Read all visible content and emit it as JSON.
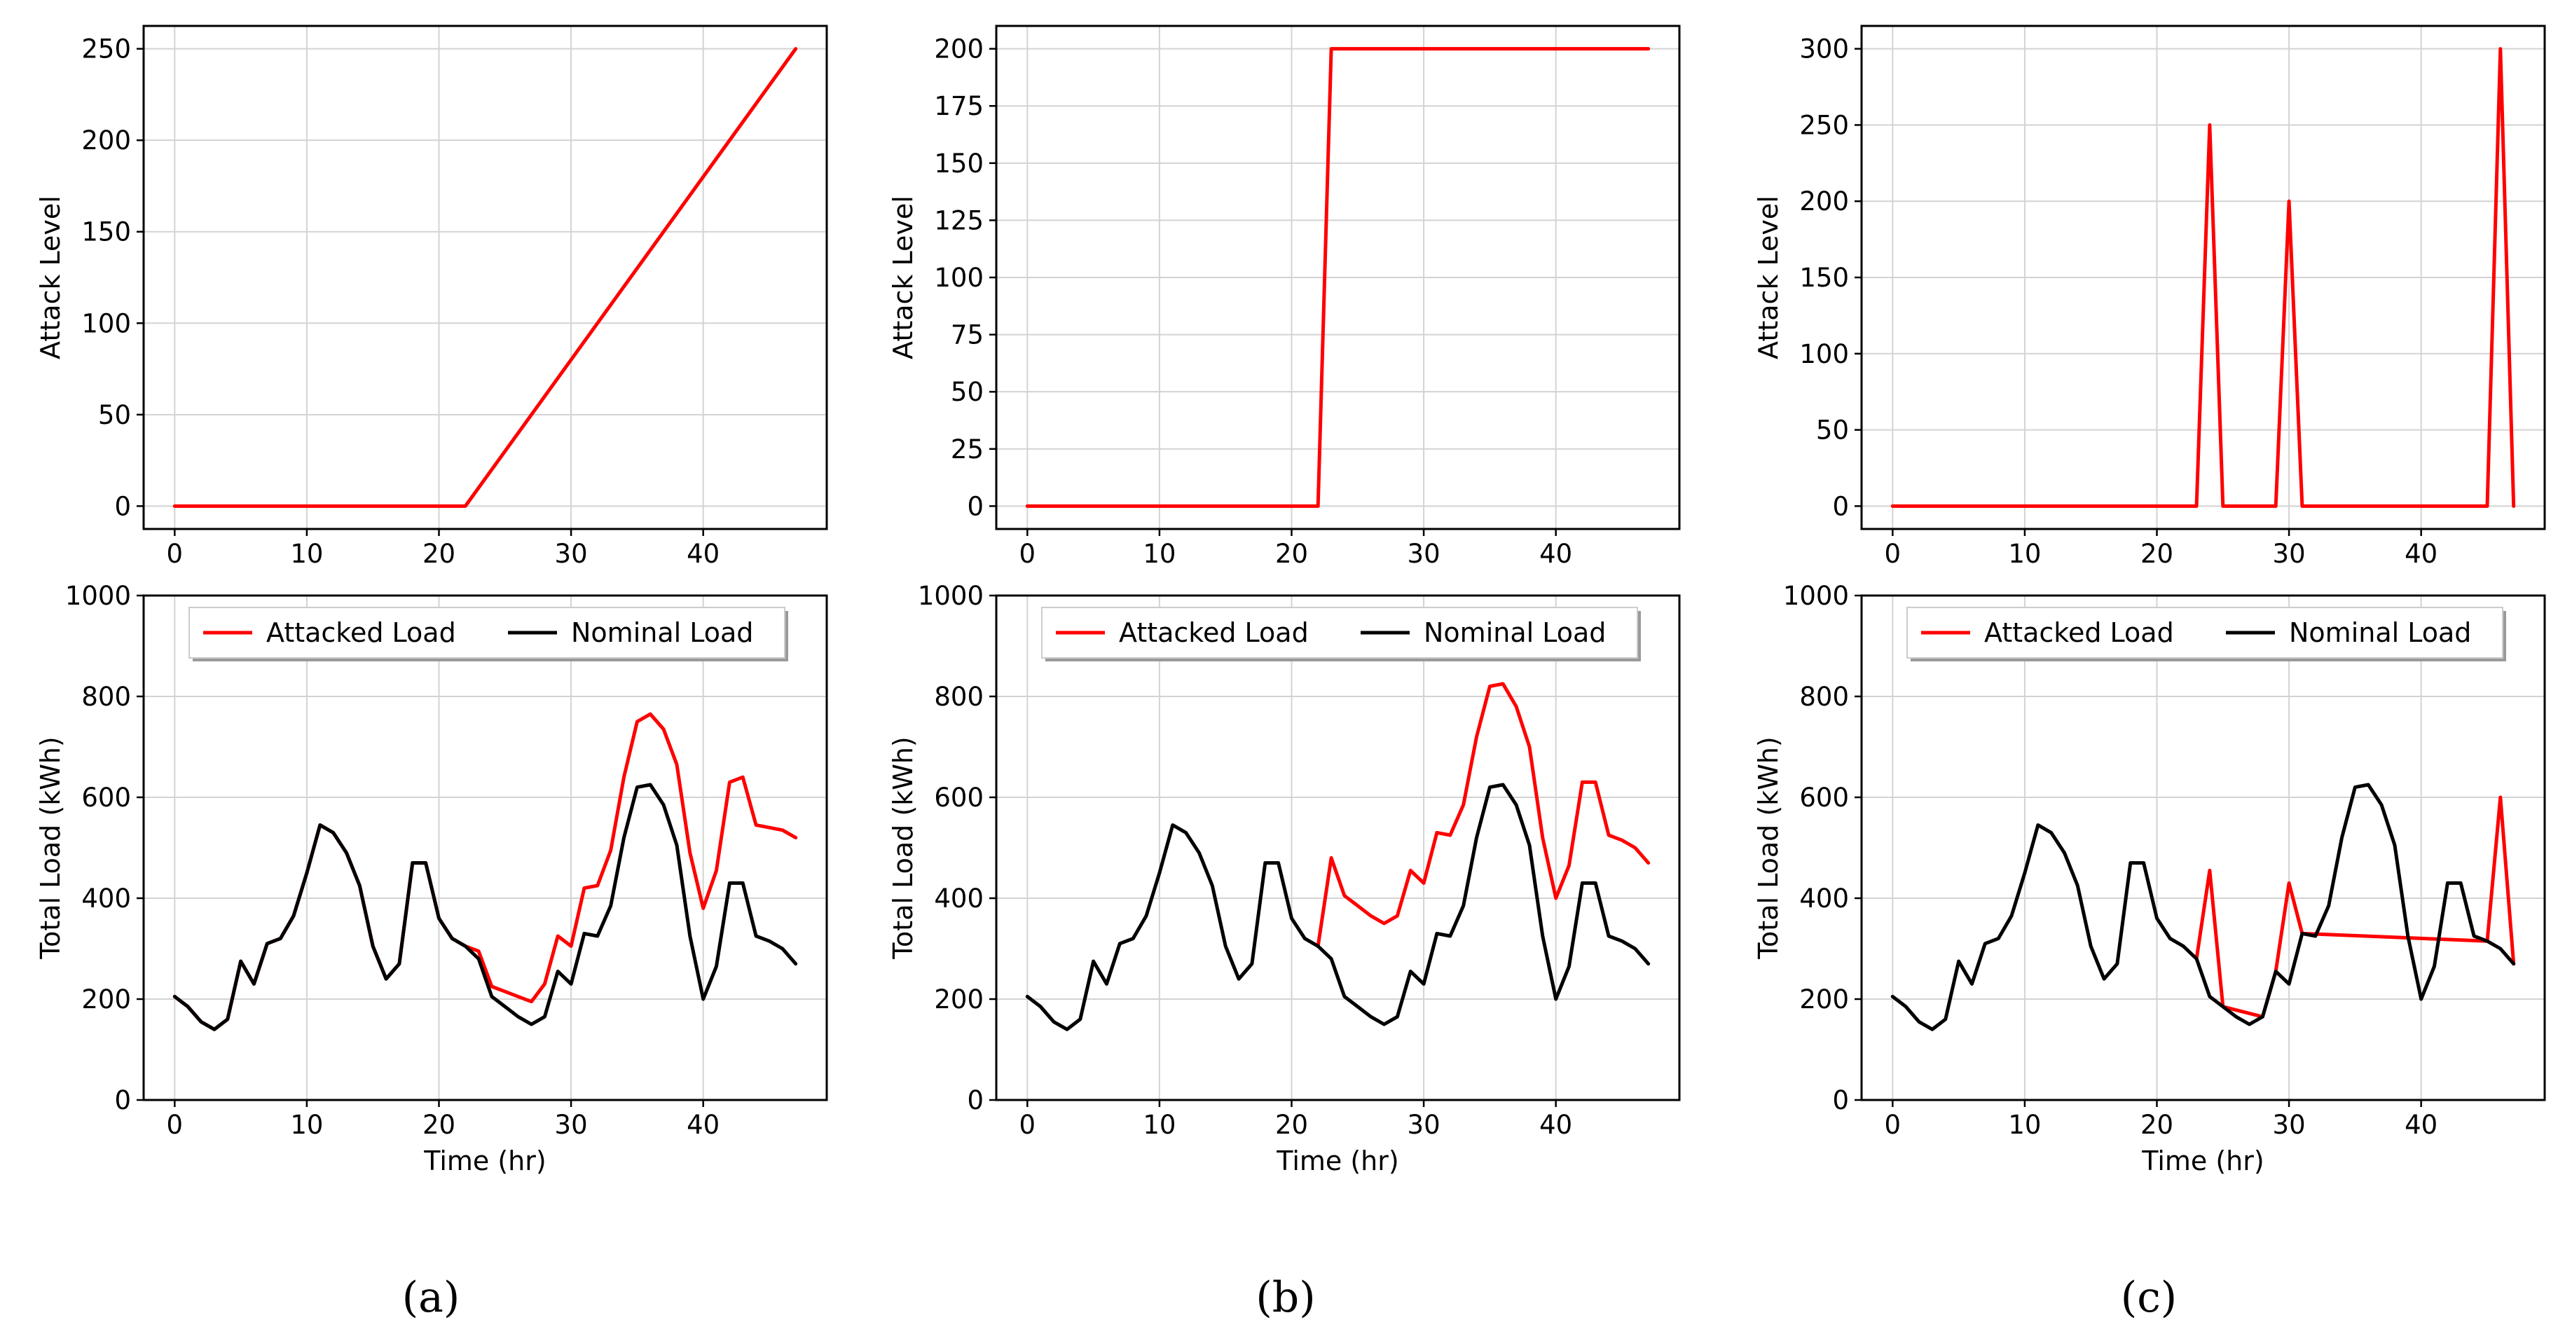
{
  "panel_labels": [
    "(a)",
    "(b)",
    "(c)"
  ],
  "colors": {
    "attacked": "#ff0000",
    "nominal": "#000000",
    "grid": "#d3d3d3"
  },
  "chart_data": [
    {
      "type": "line",
      "panel": "a",
      "row": "top",
      "title": "",
      "xlabel": "",
      "ylabel": "Attack Level",
      "xlim": [
        -2.35,
        49.35
      ],
      "ylim": [
        -12.5,
        262.5
      ],
      "xticks": [
        0,
        10,
        20,
        30,
        40
      ],
      "yticks": [
        0,
        50,
        100,
        150,
        200,
        250
      ],
      "grid": true,
      "series": [
        {
          "name": "Attack Level",
          "color": "#ff0000",
          "x": [
            0,
            22,
            47
          ],
          "y": [
            0,
            0,
            250
          ]
        }
      ]
    },
    {
      "type": "line",
      "panel": "b",
      "row": "top",
      "title": "",
      "xlabel": "",
      "ylabel": "Attack Level",
      "xlim": [
        -2.35,
        49.35
      ],
      "ylim": [
        -10,
        210
      ],
      "xticks": [
        0,
        10,
        20,
        30,
        40
      ],
      "yticks": [
        0,
        25,
        50,
        75,
        100,
        125,
        150,
        175,
        200
      ],
      "grid": true,
      "series": [
        {
          "name": "Attack Level",
          "color": "#ff0000",
          "x": [
            0,
            22,
            23,
            47
          ],
          "y": [
            0,
            0,
            200,
            200
          ]
        }
      ]
    },
    {
      "type": "line",
      "panel": "c",
      "row": "top",
      "title": "",
      "xlabel": "",
      "ylabel": "Attack Level",
      "xlim": [
        -2.35,
        49.35
      ],
      "ylim": [
        -15,
        315
      ],
      "xticks": [
        0,
        10,
        20,
        30,
        40
      ],
      "yticks": [
        0,
        50,
        100,
        150,
        200,
        250,
        300
      ],
      "grid": true,
      "series": [
        {
          "name": "Attack Level",
          "color": "#ff0000",
          "x": [
            0,
            23,
            24,
            25,
            29,
            30,
            31,
            45,
            46,
            47
          ],
          "y": [
            0,
            0,
            250,
            0,
            0,
            200,
            0,
            0,
            300,
            0
          ]
        }
      ]
    },
    {
      "type": "line",
      "panel": "a",
      "row": "bottom",
      "title": "",
      "xlabel": "Time (hr)",
      "ylabel": "Total Load (kWh)",
      "xlim": [
        -2.35,
        49.35
      ],
      "ylim": [
        0,
        1000
      ],
      "xticks": [
        0,
        10,
        20,
        30,
        40
      ],
      "yticks": [
        0,
        200,
        400,
        600,
        800,
        1000
      ],
      "grid": true,
      "legend": "top",
      "series": [
        {
          "name": "Attacked Load",
          "color": "#ff0000",
          "x": [
            0,
            1,
            2,
            3,
            4,
            5,
            6,
            7,
            8,
            9,
            10,
            11,
            12,
            13,
            14,
            15,
            16,
            17,
            18,
            19,
            20,
            21,
            22,
            23,
            24,
            25,
            26,
            27,
            28,
            29,
            30,
            31,
            32,
            33,
            34,
            35,
            36,
            37,
            38,
            39,
            40,
            41,
            42,
            43,
            44,
            45,
            46,
            47
          ],
          "y": [
            205,
            185,
            155,
            140,
            160,
            275,
            230,
            310,
            320,
            365,
            450,
            545,
            530,
            490,
            425,
            305,
            240,
            270,
            470,
            470,
            360,
            320,
            305,
            295,
            225,
            215,
            205,
            195,
            230,
            325,
            305,
            420,
            425,
            495,
            640,
            750,
            765,
            735,
            665,
            490,
            380,
            455,
            630,
            640,
            545,
            540,
            535,
            520
          ]
        },
        {
          "name": "Nominal Load",
          "color": "#000000",
          "x": [
            0,
            1,
            2,
            3,
            4,
            5,
            6,
            7,
            8,
            9,
            10,
            11,
            12,
            13,
            14,
            15,
            16,
            17,
            18,
            19,
            20,
            21,
            22,
            23,
            24,
            25,
            26,
            27,
            28,
            29,
            30,
            31,
            32,
            33,
            34,
            35,
            36,
            37,
            38,
            39,
            40,
            41,
            42,
            43,
            44,
            45,
            46,
            47
          ],
          "y": [
            205,
            185,
            155,
            140,
            160,
            275,
            230,
            310,
            320,
            365,
            450,
            545,
            530,
            490,
            425,
            305,
            240,
            270,
            470,
            470,
            360,
            320,
            305,
            280,
            205,
            185,
            165,
            150,
            165,
            255,
            230,
            330,
            325,
            385,
            520,
            620,
            625,
            585,
            505,
            325,
            200,
            265,
            430,
            430,
            325,
            315,
            300,
            270
          ]
        }
      ]
    },
    {
      "type": "line",
      "panel": "b",
      "row": "bottom",
      "title": "",
      "xlabel": "Time (hr)",
      "ylabel": "Total Load (kWh)",
      "xlim": [
        -2.35,
        49.35
      ],
      "ylim": [
        0,
        1000
      ],
      "xticks": [
        0,
        10,
        20,
        30,
        40
      ],
      "yticks": [
        0,
        200,
        400,
        600,
        800,
        1000
      ],
      "grid": true,
      "legend": "top",
      "series": [
        {
          "name": "Attacked Load",
          "color": "#ff0000",
          "x": [
            22,
            23,
            24,
            25,
            26,
            27,
            28,
            29,
            30,
            31,
            32,
            33,
            34,
            35,
            36,
            37,
            38,
            39,
            40,
            41,
            42,
            43,
            44,
            45,
            46,
            47
          ],
          "y": [
            305,
            480,
            405,
            385,
            365,
            350,
            365,
            455,
            430,
            530,
            525,
            585,
            720,
            820,
            825,
            780,
            700,
            520,
            400,
            465,
            630,
            630,
            525,
            515,
            500,
            470
          ]
        },
        {
          "name": "Nominal Load",
          "color": "#000000",
          "x": [
            0,
            1,
            2,
            3,
            4,
            5,
            6,
            7,
            8,
            9,
            10,
            11,
            12,
            13,
            14,
            15,
            16,
            17,
            18,
            19,
            20,
            21,
            22,
            23,
            24,
            25,
            26,
            27,
            28,
            29,
            30,
            31,
            32,
            33,
            34,
            35,
            36,
            37,
            38,
            39,
            40,
            41,
            42,
            43,
            44,
            45,
            46,
            47
          ],
          "y": [
            205,
            185,
            155,
            140,
            160,
            275,
            230,
            310,
            320,
            365,
            450,
            545,
            530,
            490,
            425,
            305,
            240,
            270,
            470,
            470,
            360,
            320,
            305,
            280,
            205,
            185,
            165,
            150,
            165,
            255,
            230,
            330,
            325,
            385,
            520,
            620,
            625,
            585,
            505,
            325,
            200,
            265,
            430,
            430,
            325,
            315,
            300,
            270
          ]
        }
      ]
    },
    {
      "type": "line",
      "panel": "c",
      "row": "bottom",
      "title": "",
      "xlabel": "Time (hr)",
      "ylabel": "Total Load (kWh)",
      "xlim": [
        -2.35,
        49.35
      ],
      "ylim": [
        0,
        1000
      ],
      "xticks": [
        0,
        10,
        20,
        30,
        40
      ],
      "yticks": [
        0,
        200,
        400,
        600,
        800,
        1000
      ],
      "grid": true,
      "legend": "top",
      "series": [
        {
          "name": "Attacked Load",
          "color": "#ff0000",
          "x": [
            23,
            24,
            25,
            28,
            29,
            30,
            31,
            45,
            46,
            47
          ],
          "y": [
            280,
            455,
            185,
            165,
            255,
            430,
            330,
            315,
            600,
            270
          ]
        },
        {
          "name": "Nominal Load",
          "color": "#000000",
          "x": [
            0,
            1,
            2,
            3,
            4,
            5,
            6,
            7,
            8,
            9,
            10,
            11,
            12,
            13,
            14,
            15,
            16,
            17,
            18,
            19,
            20,
            21,
            22,
            23,
            24,
            25,
            26,
            27,
            28,
            29,
            30,
            31,
            32,
            33,
            34,
            35,
            36,
            37,
            38,
            39,
            40,
            41,
            42,
            43,
            44,
            45,
            46,
            47
          ],
          "y": [
            205,
            185,
            155,
            140,
            160,
            275,
            230,
            310,
            320,
            365,
            450,
            545,
            530,
            490,
            425,
            305,
            240,
            270,
            470,
            470,
            360,
            320,
            305,
            280,
            205,
            185,
            165,
            150,
            165,
            255,
            230,
            330,
            325,
            385,
            520,
            620,
            625,
            585,
            505,
            325,
            200,
            265,
            430,
            430,
            325,
            315,
            300,
            270
          ]
        }
      ]
    }
  ]
}
